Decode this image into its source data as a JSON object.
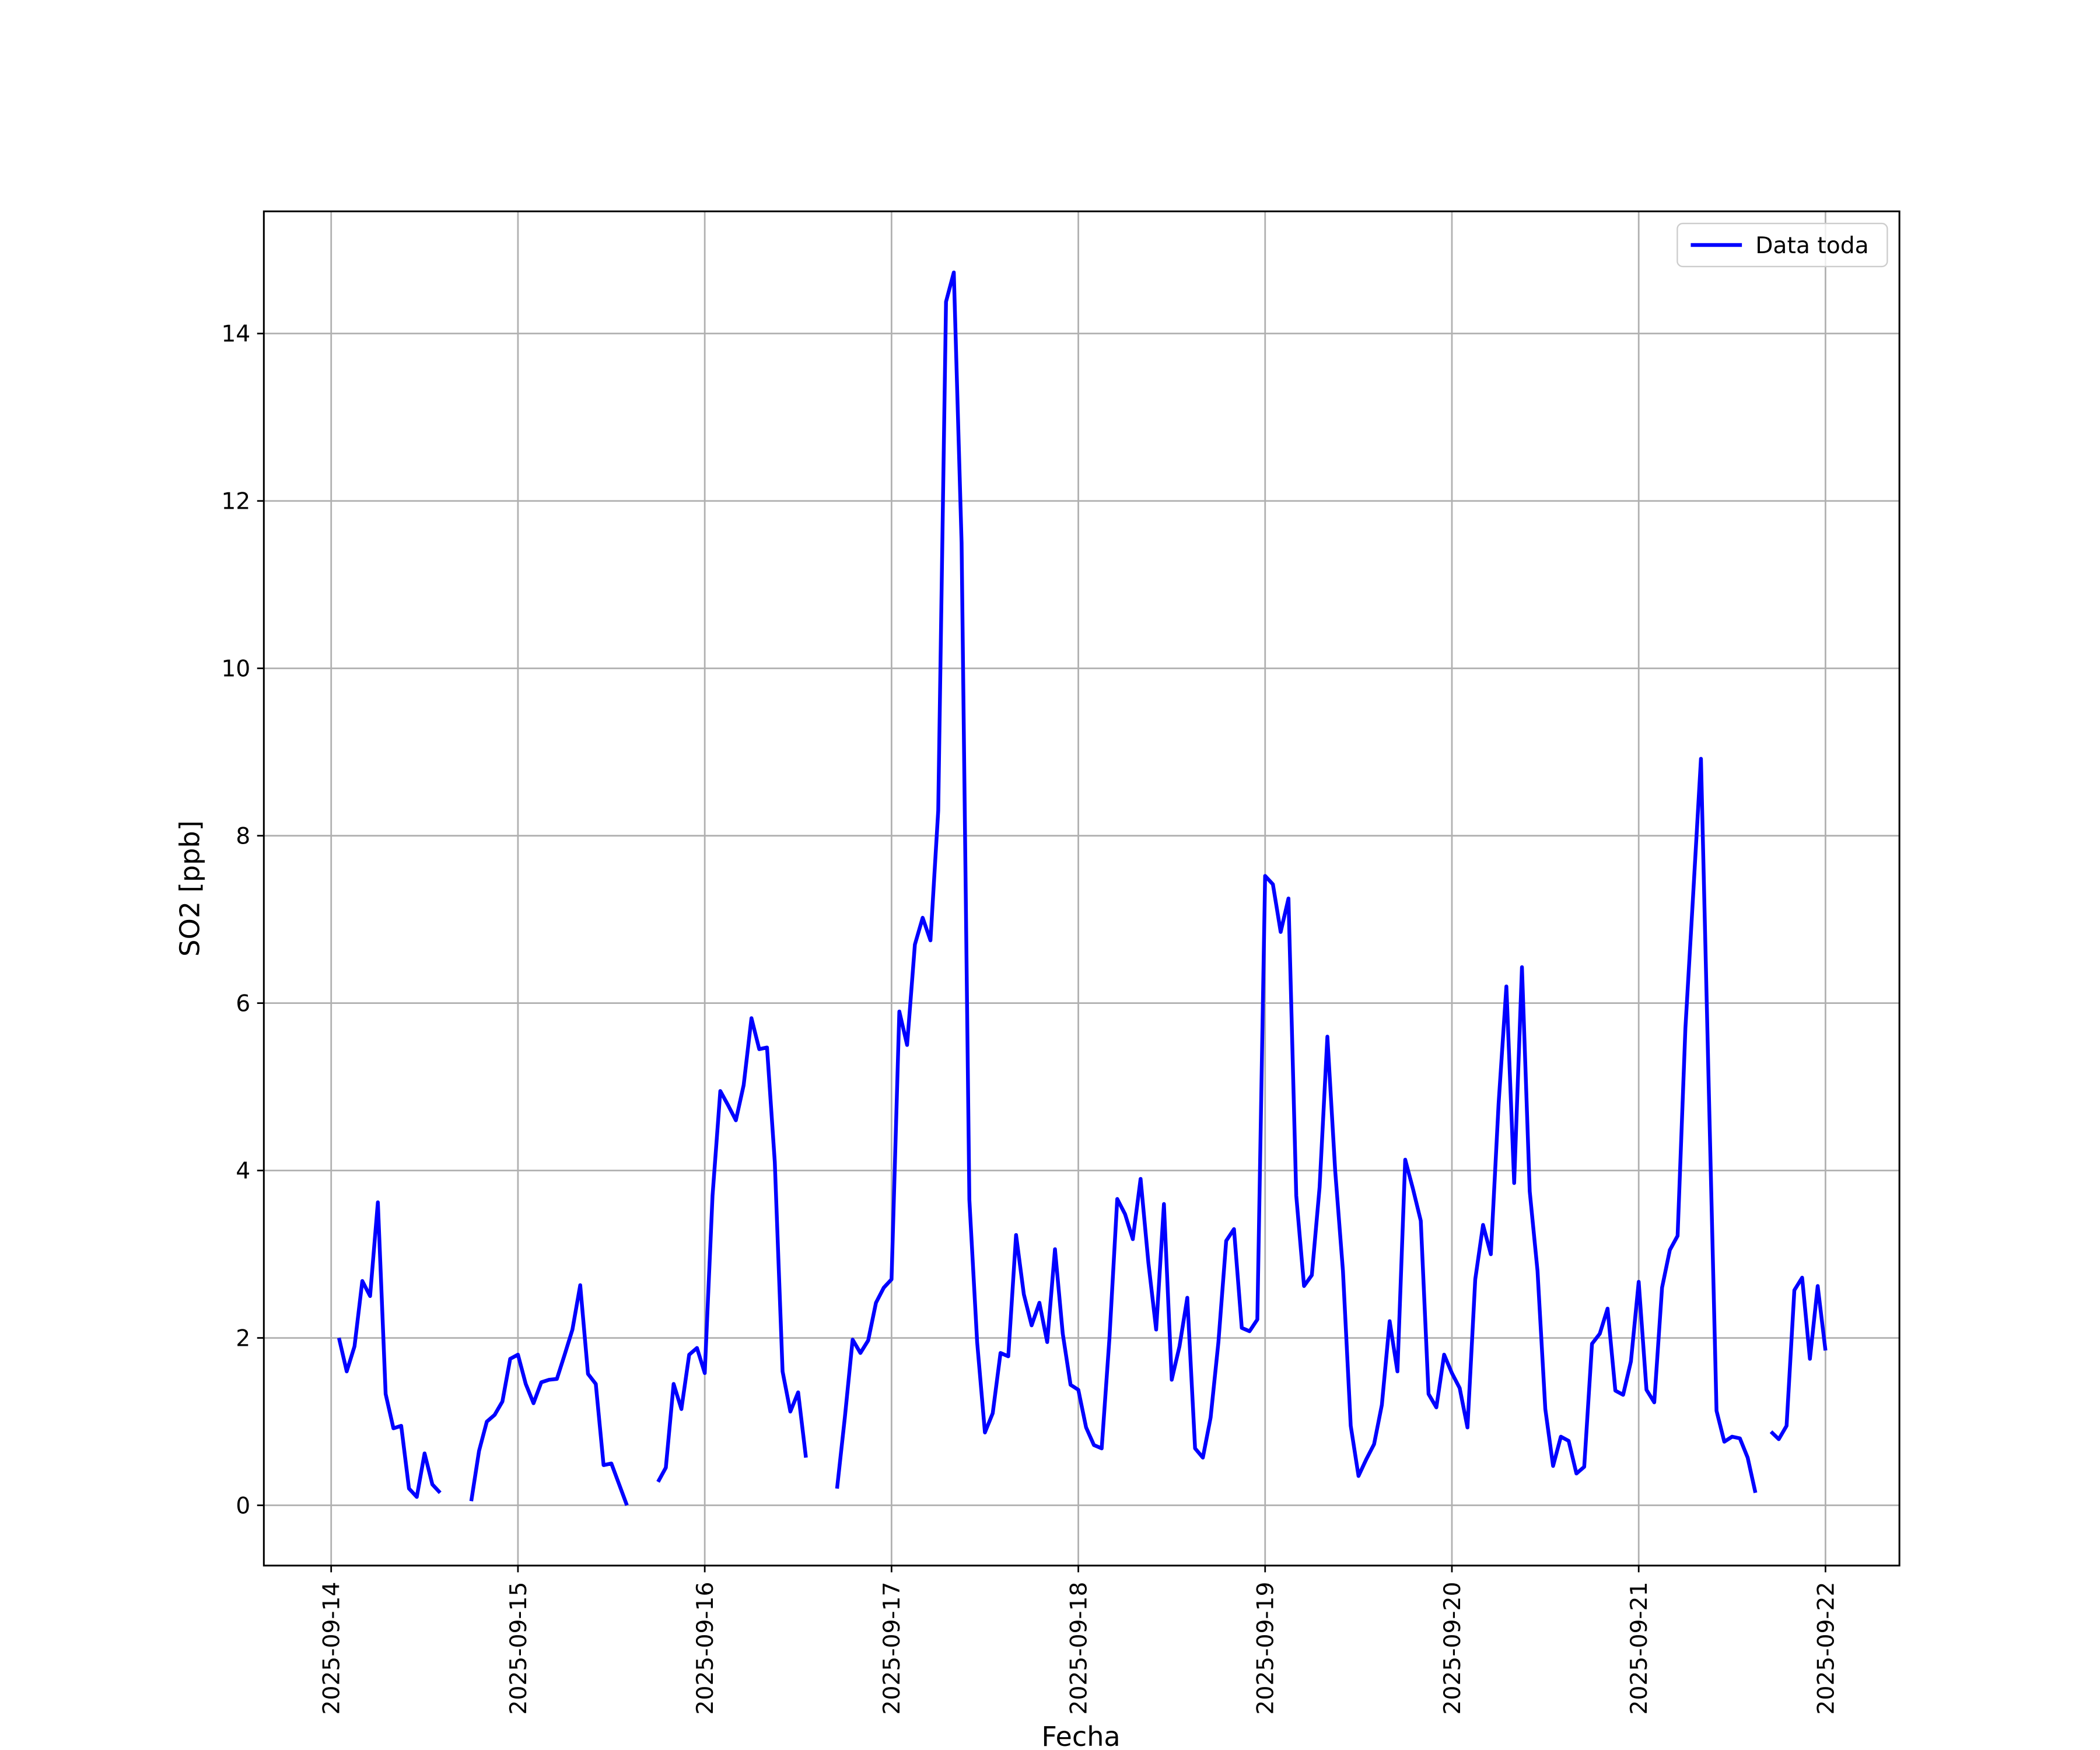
{
  "chart_data": {
    "type": "line",
    "xlabel": "Fecha",
    "ylabel": "SO2 [ppb]",
    "x": [
      "2025-09-14 01:00",
      "2025-09-14 02:00",
      "2025-09-14 03:00",
      "2025-09-14 04:00",
      "2025-09-14 05:00",
      "2025-09-14 06:00",
      "2025-09-14 07:00",
      "2025-09-14 08:00",
      "2025-09-14 09:00",
      "2025-09-14 10:00",
      "2025-09-14 11:00",
      "2025-09-14 12:00",
      "2025-09-14 13:00",
      "2025-09-14 14:00",
      "2025-09-14 15:00",
      "2025-09-14 16:00",
      "2025-09-14 17:00",
      "2025-09-14 18:00",
      "2025-09-14 19:00",
      "2025-09-14 20:00",
      "2025-09-14 21:00",
      "2025-09-14 22:00",
      "2025-09-14 23:00",
      "2025-09-15 00:00",
      "2025-09-15 01:00",
      "2025-09-15 02:00",
      "2025-09-15 03:00",
      "2025-09-15 04:00",
      "2025-09-15 05:00",
      "2025-09-15 06:00",
      "2025-09-15 07:00",
      "2025-09-15 08:00",
      "2025-09-15 09:00",
      "2025-09-15 10:00",
      "2025-09-15 11:00",
      "2025-09-15 12:00",
      "2025-09-15 13:00",
      "2025-09-15 14:00",
      "2025-09-15 15:00",
      "2025-09-15 16:00",
      "2025-09-15 17:00",
      "2025-09-15 18:00",
      "2025-09-15 19:00",
      "2025-09-15 20:00",
      "2025-09-15 21:00",
      "2025-09-15 22:00",
      "2025-09-15 23:00",
      "2025-09-16 00:00",
      "2025-09-16 01:00",
      "2025-09-16 02:00",
      "2025-09-16 03:00",
      "2025-09-16 04:00",
      "2025-09-16 05:00",
      "2025-09-16 06:00",
      "2025-09-16 07:00",
      "2025-09-16 08:00",
      "2025-09-16 09:00",
      "2025-09-16 10:00",
      "2025-09-16 11:00",
      "2025-09-16 12:00",
      "2025-09-16 13:00",
      "2025-09-16 14:00",
      "2025-09-16 15:00",
      "2025-09-16 16:00",
      "2025-09-16 17:00",
      "2025-09-16 18:00",
      "2025-09-16 19:00",
      "2025-09-16 20:00",
      "2025-09-16 21:00",
      "2025-09-16 22:00",
      "2025-09-16 23:00",
      "2025-09-17 00:00",
      "2025-09-17 01:00",
      "2025-09-17 02:00",
      "2025-09-17 03:00",
      "2025-09-17 04:00",
      "2025-09-17 05:00",
      "2025-09-17 06:00",
      "2025-09-17 07:00",
      "2025-09-17 08:00",
      "2025-09-17 09:00",
      "2025-09-17 10:00",
      "2025-09-17 11:00",
      "2025-09-17 12:00",
      "2025-09-17 13:00",
      "2025-09-17 14:00",
      "2025-09-17 15:00",
      "2025-09-17 16:00",
      "2025-09-17 17:00",
      "2025-09-17 18:00",
      "2025-09-17 19:00",
      "2025-09-17 20:00",
      "2025-09-17 21:00",
      "2025-09-17 22:00",
      "2025-09-17 23:00",
      "2025-09-18 00:00",
      "2025-09-18 01:00",
      "2025-09-18 02:00",
      "2025-09-18 03:00",
      "2025-09-18 04:00",
      "2025-09-18 05:00",
      "2025-09-18 06:00",
      "2025-09-18 07:00",
      "2025-09-18 08:00",
      "2025-09-18 09:00",
      "2025-09-18 10:00",
      "2025-09-18 11:00",
      "2025-09-18 12:00",
      "2025-09-18 13:00",
      "2025-09-18 14:00",
      "2025-09-18 15:00",
      "2025-09-18 16:00",
      "2025-09-18 17:00",
      "2025-09-18 18:00",
      "2025-09-18 19:00",
      "2025-09-18 20:00",
      "2025-09-18 21:00",
      "2025-09-18 22:00",
      "2025-09-18 23:00",
      "2025-09-19 00:00",
      "2025-09-19 01:00",
      "2025-09-19 02:00",
      "2025-09-19 03:00",
      "2025-09-19 04:00",
      "2025-09-19 05:00",
      "2025-09-19 06:00",
      "2025-09-19 07:00",
      "2025-09-19 08:00",
      "2025-09-19 09:00",
      "2025-09-19 10:00",
      "2025-09-19 11:00",
      "2025-09-19 12:00",
      "2025-09-19 13:00",
      "2025-09-19 14:00",
      "2025-09-19 15:00",
      "2025-09-19 16:00",
      "2025-09-19 17:00",
      "2025-09-19 18:00",
      "2025-09-19 19:00",
      "2025-09-19 20:00",
      "2025-09-19 21:00",
      "2025-09-19 22:00",
      "2025-09-19 23:00",
      "2025-09-20 00:00",
      "2025-09-20 01:00",
      "2025-09-20 02:00",
      "2025-09-20 03:00",
      "2025-09-20 04:00",
      "2025-09-20 05:00",
      "2025-09-20 06:00",
      "2025-09-20 07:00",
      "2025-09-20 08:00",
      "2025-09-20 09:00",
      "2025-09-20 10:00",
      "2025-09-20 11:00",
      "2025-09-20 12:00",
      "2025-09-20 13:00",
      "2025-09-20 14:00",
      "2025-09-20 15:00",
      "2025-09-20 16:00",
      "2025-09-20 17:00",
      "2025-09-20 18:00",
      "2025-09-20 19:00",
      "2025-09-20 20:00",
      "2025-09-20 21:00",
      "2025-09-20 22:00",
      "2025-09-20 23:00",
      "2025-09-21 00:00",
      "2025-09-21 01:00",
      "2025-09-21 02:00",
      "2025-09-21 03:00",
      "2025-09-21 04:00",
      "2025-09-21 05:00",
      "2025-09-21 06:00",
      "2025-09-21 07:00",
      "2025-09-21 08:00",
      "2025-09-21 09:00",
      "2025-09-21 10:00",
      "2025-09-21 11:00",
      "2025-09-21 12:00",
      "2025-09-21 13:00",
      "2025-09-21 14:00",
      "2025-09-21 15:00",
      "2025-09-21 16:00",
      "2025-09-21 17:00",
      "2025-09-21 18:00",
      "2025-09-21 19:00",
      "2025-09-21 20:00",
      "2025-09-21 21:00",
      "2025-09-21 22:00",
      "2025-09-21 23:00",
      "2025-09-22 00:00"
    ],
    "series": [
      {
        "name": "Data toda",
        "color": "#0000ff",
        "values": [
          2.0,
          1.6,
          1.9,
          2.68,
          2.5,
          3.62,
          1.33,
          0.92,
          0.95,
          0.2,
          0.1,
          0.62,
          0.25,
          0.15,
          null,
          null,
          null,
          0.05,
          0.65,
          1.0,
          1.08,
          1.24,
          1.75,
          1.8,
          1.45,
          1.22,
          1.47,
          1.5,
          1.51,
          1.8,
          2.1,
          2.63,
          1.57,
          1.45,
          0.48,
          0.5,
          0.25,
          0.0,
          null,
          null,
          null,
          0.28,
          0.45,
          1.45,
          1.15,
          1.8,
          1.88,
          1.58,
          3.7,
          4.95,
          4.78,
          4.6,
          5.02,
          5.82,
          5.45,
          5.47,
          4.1,
          1.6,
          1.12,
          1.35,
          0.57,
          null,
          null,
          null,
          0.2,
          1.05,
          1.98,
          1.82,
          1.97,
          2.42,
          2.6,
          2.7,
          5.9,
          5.5,
          6.7,
          7.02,
          6.75,
          8.3,
          14.38,
          14.73,
          11.5,
          3.65,
          1.95,
          0.87,
          1.1,
          1.82,
          1.78,
          3.23,
          2.52,
          2.15,
          2.42,
          1.95,
          3.06,
          2.05,
          1.44,
          1.38,
          0.93,
          0.72,
          0.68,
          2.0,
          3.66,
          3.48,
          3.18,
          3.9,
          2.9,
          2.1,
          3.6,
          1.5,
          1.9,
          2.48,
          0.68,
          0.57,
          1.05,
          1.95,
          3.16,
          3.3,
          2.12,
          2.08,
          2.22,
          7.52,
          7.42,
          6.85,
          7.25,
          3.7,
          2.62,
          2.75,
          3.8,
          5.6,
          4.0,
          2.8,
          0.95,
          0.35,
          0.55,
          0.73,
          1.2,
          2.2,
          1.6,
          4.13,
          3.78,
          3.4,
          1.33,
          1.17,
          1.8,
          1.58,
          1.4,
          0.93,
          2.7,
          3.35,
          3.0,
          4.8,
          6.2,
          3.85,
          6.43,
          3.75,
          2.8,
          1.15,
          0.47,
          0.82,
          0.77,
          0.38,
          0.46,
          1.93,
          2.05,
          2.35,
          1.37,
          1.32,
          1.72,
          2.67,
          1.38,
          1.23,
          2.6,
          3.05,
          3.22,
          5.7,
          7.3,
          8.92,
          5.0,
          1.13,
          0.76,
          0.82,
          0.8,
          0.57,
          0.15,
          null,
          0.88,
          0.79,
          0.95,
          2.57,
          2.72,
          1.75,
          2.62,
          1.85
        ]
      }
    ],
    "xlim": [
      "2025-09-13 15:21",
      "2025-09-22 09:30"
    ],
    "xticks": [
      "2025-09-14",
      "2025-09-15",
      "2025-09-16",
      "2025-09-17",
      "2025-09-18",
      "2025-09-19",
      "2025-09-20",
      "2025-09-21",
      "2025-09-22"
    ],
    "ylim": [
      -0.72,
      15.46
    ],
    "yticks": [
      0,
      2,
      4,
      6,
      8,
      10,
      12,
      14
    ],
    "grid": true,
    "legend": "upper right"
  }
}
